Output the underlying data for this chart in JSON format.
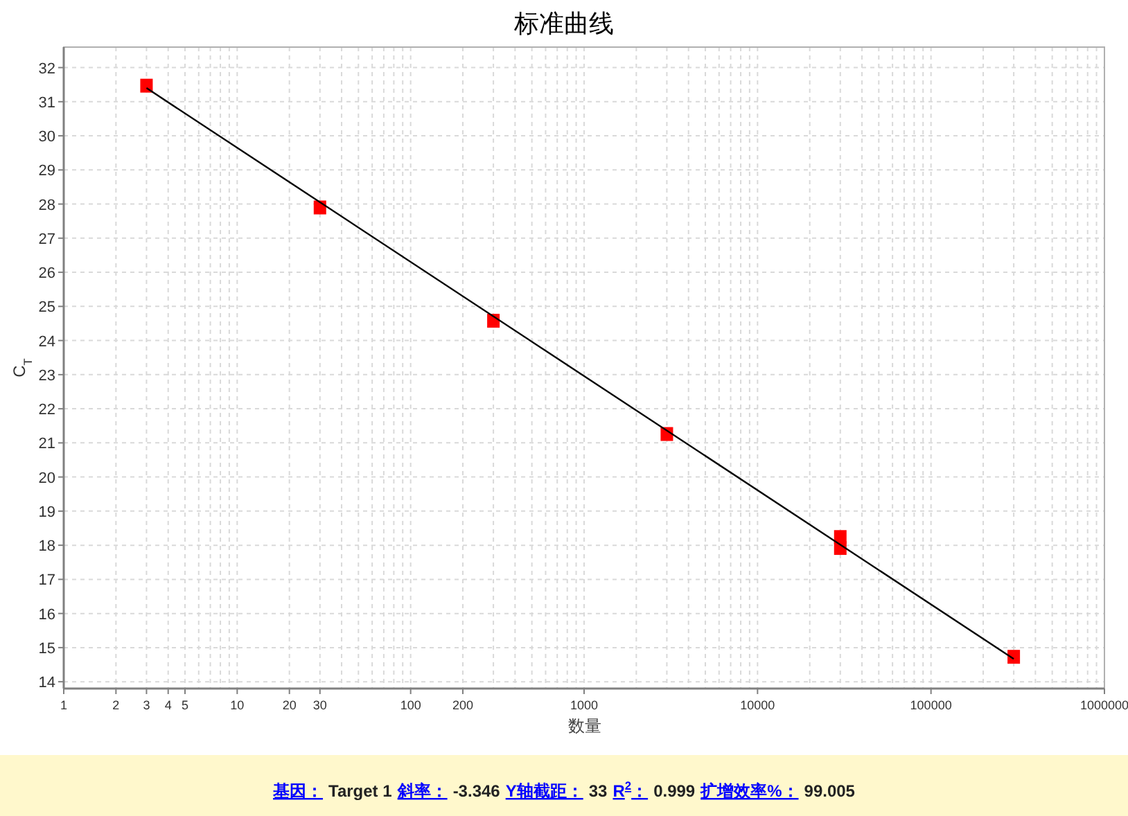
{
  "chart_data": {
    "type": "scatter",
    "title": "标准曲线",
    "xlabel": "数量",
    "ylabel": "C$_{T}$",
    "log": "x",
    "grid": true,
    "marker": "square",
    "xlim": [
      1,
      1000000
    ],
    "xticks": [
      1,
      2,
      3,
      4,
      5,
      10,
      20,
      30,
      100,
      200,
      1000,
      10000,
      100000,
      1000000
    ],
    "ylim": [
      13.8,
      32.6
    ],
    "yticks": [
      14,
      15,
      16,
      17,
      18,
      19,
      20,
      21,
      22,
      23,
      24,
      25,
      26,
      27,
      28,
      29,
      30,
      31,
      32
    ],
    "series": [
      {
        "color": "#ff0000",
        "x": [
          3,
          30,
          300,
          3000,
          30000,
          30000,
          300000
        ],
        "values": [
          31.47,
          27.9,
          24.58,
          21.26,
          18.24,
          17.92,
          14.73
        ]
      },
      {
        "type": "line",
        "color": "#000000",
        "marker": "none",
        "x": [
          3,
          300000
        ],
        "values": [
          31.4,
          14.67
        ]
      }
    ],
    "annotations": [
      "基因：",
      "Target 1",
      "斜率：",
      "-3.346",
      "Y轴截距：",
      "33",
      "R$^{2}$：",
      "0.999",
      "扩增效率%：",
      "99.005"
    ]
  }
}
